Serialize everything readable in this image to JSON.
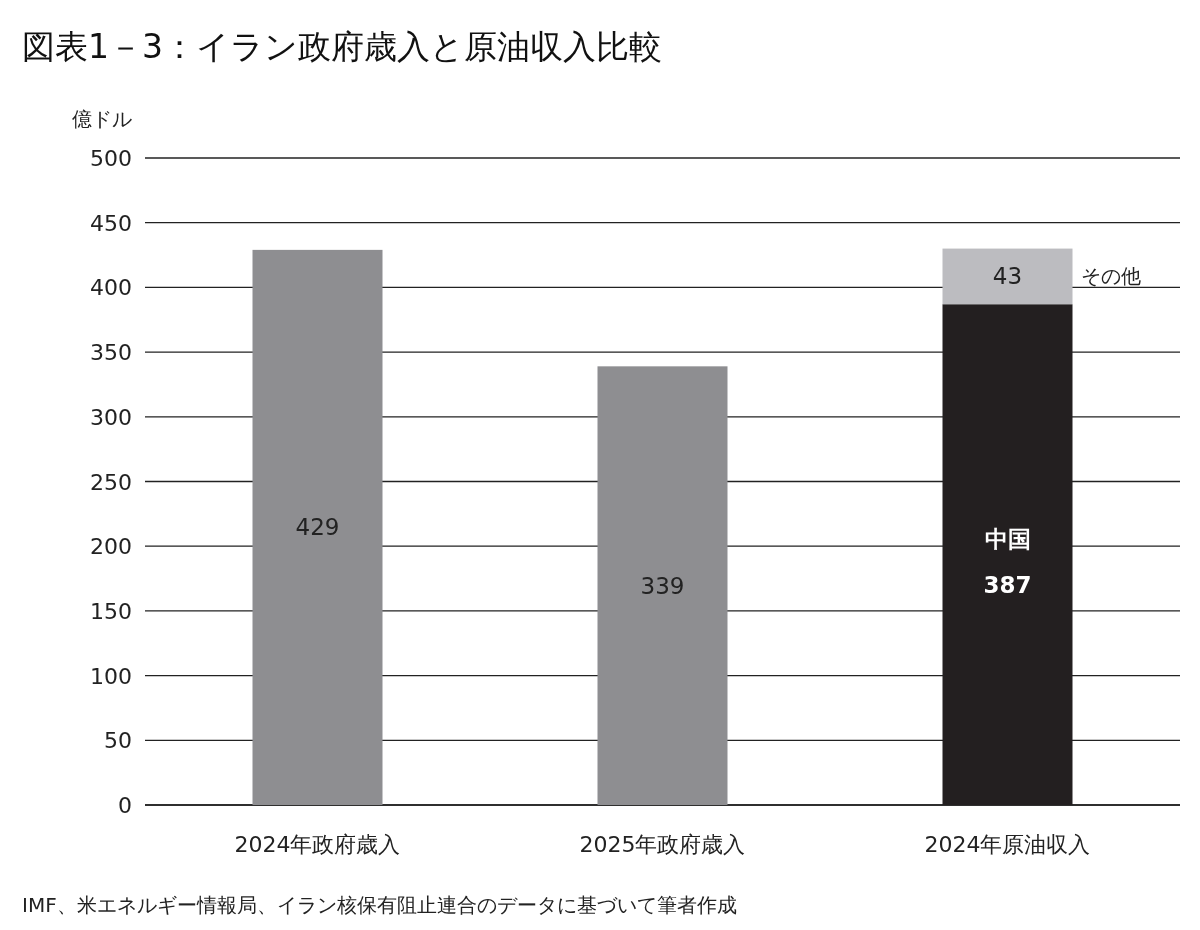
{
  "chart_data": {
    "type": "bar",
    "title": "図表1－3：イラン政府歳入と原油収入比較",
    "ylabel": "億ドル",
    "categories": [
      "2024年政府歳入",
      "2025年政府歳入",
      "2024年原油収入"
    ],
    "stacked": true,
    "series": [
      {
        "color": "#8e8e91",
        "values": [
          429,
          339,
          null
        ]
      },
      {
        "name": "中国",
        "color": "#231f20",
        "values": [
          null,
          null,
          387
        ]
      },
      {
        "name": "その他",
        "color": "#bcbcc0",
        "values": [
          null,
          null,
          43
        ]
      }
    ],
    "ylim": [
      0,
      500
    ],
    "yticks": [
      0,
      50,
      100,
      150,
      200,
      250,
      300,
      350,
      400,
      450,
      500
    ],
    "grid": "y",
    "data_labels": true,
    "annotations": [
      "IMF、米エネルギー情報局、イラン核保有阻止連合のデータに基づいて筆者作成"
    ]
  }
}
